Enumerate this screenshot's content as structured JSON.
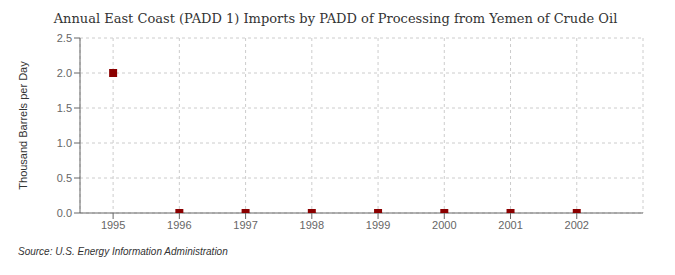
{
  "chart_data": {
    "type": "scatter",
    "title": "Annual East Coast (PADD 1) Imports by PADD of Processing from Yemen of Crude Oil",
    "y_label": "Thousand Barrels per Day",
    "annotations": [
      "Source: U.S. Energy Information Administration"
    ],
    "x": [
      1995,
      1996,
      1997,
      1998,
      1999,
      2000,
      2001,
      2002
    ],
    "values": [
      2.0,
      0.0,
      0.0,
      0.0,
      0.0,
      0.0,
      0.0,
      0.0
    ],
    "color": "#8b0000",
    "marker": "square",
    "xlim": [
      1994.5,
      2003.0
    ],
    "ylim": [
      0.0,
      2.5
    ],
    "xticks": [
      1995,
      1996,
      1997,
      1998,
      1999,
      2000,
      2001,
      2002
    ],
    "yticks": [
      {
        "value": 0,
        "label": "0.0"
      },
      0.5,
      {
        "value": 1,
        "label": "1.0"
      },
      1.5,
      {
        "value": 2,
        "label": "2.0"
      },
      2.5
    ],
    "grid": true
  }
}
